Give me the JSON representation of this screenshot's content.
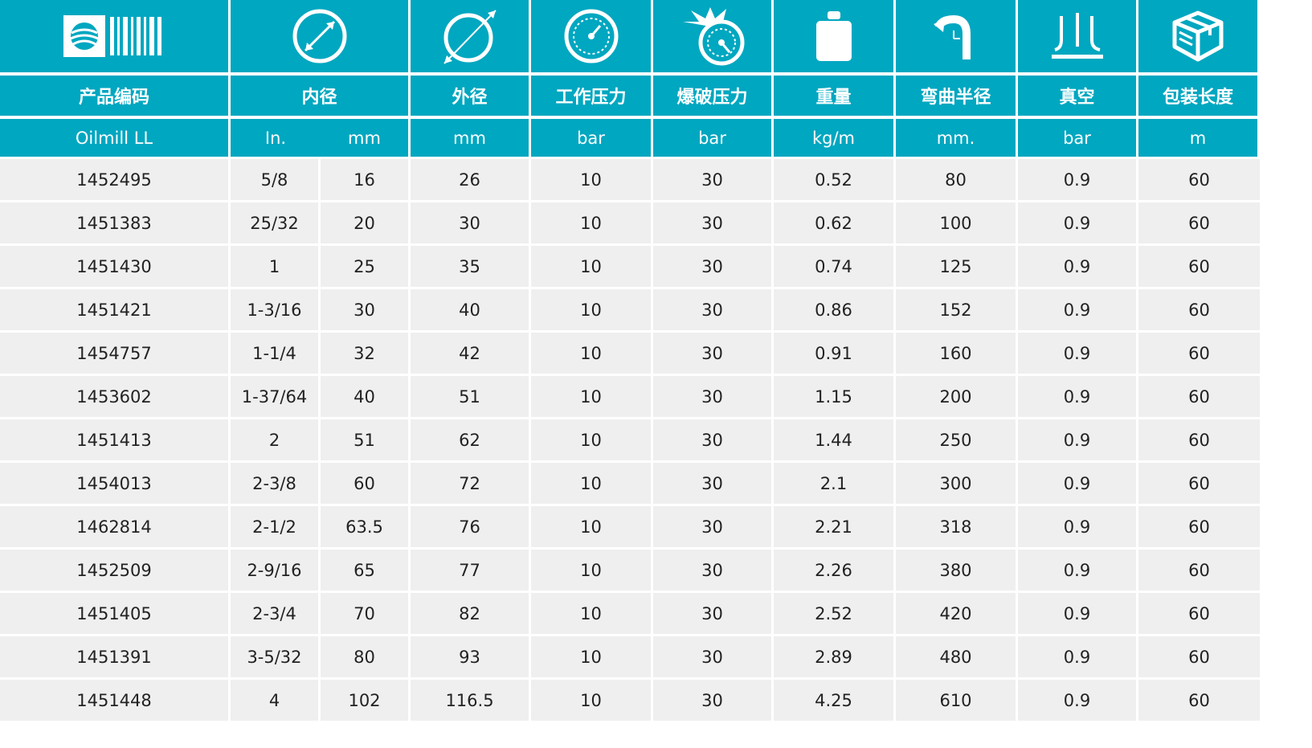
{
  "brand_color": "#00a7c0",
  "icons": [
    "barcode-logo-icon",
    "inner-diameter-icon",
    "outer-diameter-icon",
    "pressure-gauge-icon",
    "burst-pressure-icon",
    "weight-icon",
    "bend-radius-icon",
    "vacuum-icon",
    "package-box-icon"
  ],
  "headers": {
    "code": "产品编码",
    "inner": "内径",
    "outer": "外径",
    "working_pressure": "工作压力",
    "burst_pressure": "爆破压力",
    "weight": "重量",
    "bend_radius": "弯曲半径",
    "vacuum": "真空",
    "pack_length": "包装长度"
  },
  "units": {
    "code": "Oilmill LL",
    "inner_in": "In.",
    "inner_mm": "mm",
    "outer": "mm",
    "working_pressure": "bar",
    "burst_pressure": "bar",
    "weight": "kg/m",
    "bend_radius": "mm.",
    "vacuum": "bar",
    "pack_length": "m"
  },
  "rows": [
    [
      "1452495",
      "5/8",
      "16",
      "26",
      "10",
      "30",
      "0.52",
      "80",
      "0.9",
      "60"
    ],
    [
      "1451383",
      "25/32",
      "20",
      "30",
      "10",
      "30",
      "0.62",
      "100",
      "0.9",
      "60"
    ],
    [
      "1451430",
      "1",
      "25",
      "35",
      "10",
      "30",
      "0.74",
      "125",
      "0.9",
      "60"
    ],
    [
      "1451421",
      "1-3/16",
      "30",
      "40",
      "10",
      "30",
      "0.86",
      "152",
      "0.9",
      "60"
    ],
    [
      "1454757",
      "1-1/4",
      "32",
      "42",
      "10",
      "30",
      "0.91",
      "160",
      "0.9",
      "60"
    ],
    [
      "1453602",
      "1-37/64",
      "40",
      "51",
      "10",
      "30",
      "1.15",
      "200",
      "0.9",
      "60"
    ],
    [
      "1451413",
      "2",
      "51",
      "62",
      "10",
      "30",
      "1.44",
      "250",
      "0.9",
      "60"
    ],
    [
      "1454013",
      "2-3/8",
      "60",
      "72",
      "10",
      "30",
      "2.1",
      "300",
      "0.9",
      "60"
    ],
    [
      "1462814",
      "2-1/2",
      "63.5",
      "76",
      "10",
      "30",
      "2.21",
      "318",
      "0.9",
      "60"
    ],
    [
      "1452509",
      "2-9/16",
      "65",
      "77",
      "10",
      "30",
      "2.26",
      "380",
      "0.9",
      "60"
    ],
    [
      "1451405",
      "2-3/4",
      "70",
      "82",
      "10",
      "30",
      "2.52",
      "420",
      "0.9",
      "60"
    ],
    [
      "1451391",
      "3-5/32",
      "80",
      "93",
      "10",
      "30",
      "2.89",
      "480",
      "0.9",
      "60"
    ],
    [
      "1451448",
      "4",
      "102",
      "116.5",
      "10",
      "30",
      "4.25",
      "610",
      "0.9",
      "60"
    ]
  ]
}
